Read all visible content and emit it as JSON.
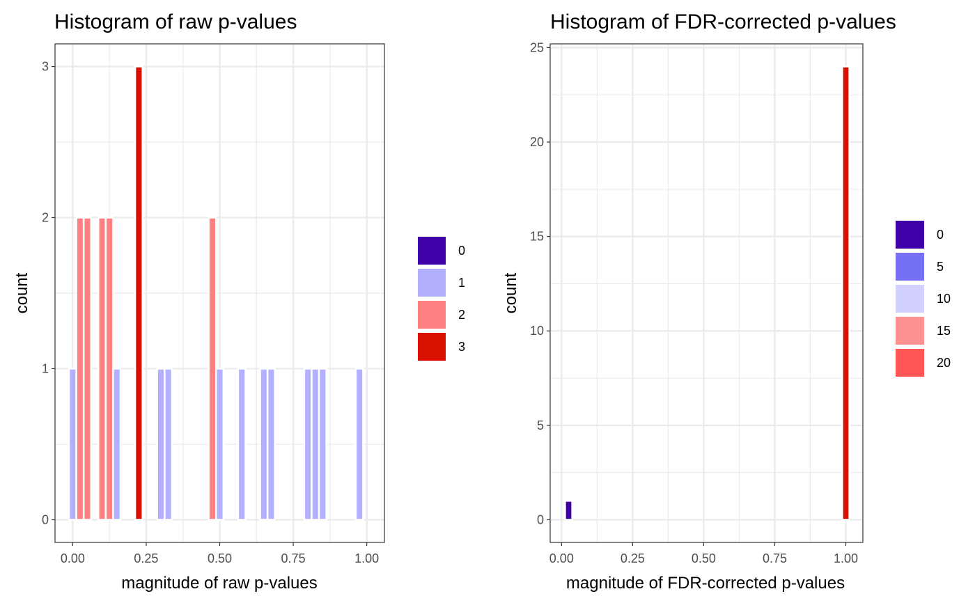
{
  "chart_data": [
    {
      "type": "bar",
      "title": "Histogram of raw p-values",
      "xlabel": "magnitude of raw p-values",
      "ylabel": "count",
      "xlim": [
        -0.06,
        1.06
      ],
      "ylim": [
        -0.15,
        3.15
      ],
      "x_ticks": [
        0,
        0.25,
        0.5,
        0.75,
        1
      ],
      "x_tick_labels": [
        "0.00",
        "0.25",
        "0.50",
        "0.75",
        "1.00"
      ],
      "y_ticks": [
        0,
        1,
        2,
        3
      ],
      "y_tick_labels": [
        "0",
        "1",
        "2",
        "3"
      ],
      "grid": true,
      "bin_width": 0.025,
      "bins": [
        {
          "x": 0.0,
          "count": 1
        },
        {
          "x": 0.025,
          "count": 2
        },
        {
          "x": 0.05,
          "count": 2
        },
        {
          "x": 0.1,
          "count": 2
        },
        {
          "x": 0.125,
          "count": 2
        },
        {
          "x": 0.15,
          "count": 1
        },
        {
          "x": 0.225,
          "count": 3
        },
        {
          "x": 0.3,
          "count": 1
        },
        {
          "x": 0.325,
          "count": 1
        },
        {
          "x": 0.475,
          "count": 2
        },
        {
          "x": 0.5,
          "count": 1
        },
        {
          "x": 0.575,
          "count": 1
        },
        {
          "x": 0.65,
          "count": 1
        },
        {
          "x": 0.675,
          "count": 1
        },
        {
          "x": 0.8,
          "count": 1
        },
        {
          "x": 0.825,
          "count": 1
        },
        {
          "x": 0.85,
          "count": 1
        },
        {
          "x": 0.975,
          "count": 1
        }
      ],
      "legend": {
        "position": "right",
        "entries": [
          {
            "label": "0",
            "color": "#4000a8"
          },
          {
            "label": "1",
            "color": "#b3b0ff"
          },
          {
            "label": "2",
            "color": "#ff8080"
          },
          {
            "label": "3",
            "color": "#d90f00"
          }
        ]
      },
      "colors": {
        "0": "#4000a8",
        "1": "#b3b0ff",
        "2": "#ff8080",
        "3": "#d90f00"
      }
    },
    {
      "type": "bar",
      "title": "Histogram of FDR-corrected p-values",
      "xlabel": "magnitude of FDR-corrected p-values",
      "ylabel": "count",
      "xlim": [
        -0.04,
        1.06
      ],
      "ylim": [
        -1.2,
        25.2
      ],
      "x_ticks": [
        0,
        0.25,
        0.5,
        0.75,
        1
      ],
      "x_tick_labels": [
        "0.00",
        "0.25",
        "0.50",
        "0.75",
        "1.00"
      ],
      "y_ticks": [
        0,
        5,
        10,
        15,
        20,
        25
      ],
      "y_tick_labels": [
        "0",
        "5",
        "10",
        "15",
        "20",
        "25"
      ],
      "grid": true,
      "bin_width": 0.025,
      "bins": [
        {
          "x": 0.025,
          "count": 1
        },
        {
          "x": 1.0,
          "count": 24
        }
      ],
      "legend": {
        "position": "right",
        "entries": [
          {
            "label": "0",
            "color": "#4000a8"
          },
          {
            "label": "5",
            "color": "#7570f5"
          },
          {
            "label": "10",
            "color": "#d2d0ff"
          },
          {
            "label": "15",
            "color": "#ff9090"
          },
          {
            "label": "20",
            "color": "#ff5555"
          }
        ]
      },
      "colors": {
        "1": "#4000a8",
        "24": "#d90f00"
      }
    }
  ]
}
